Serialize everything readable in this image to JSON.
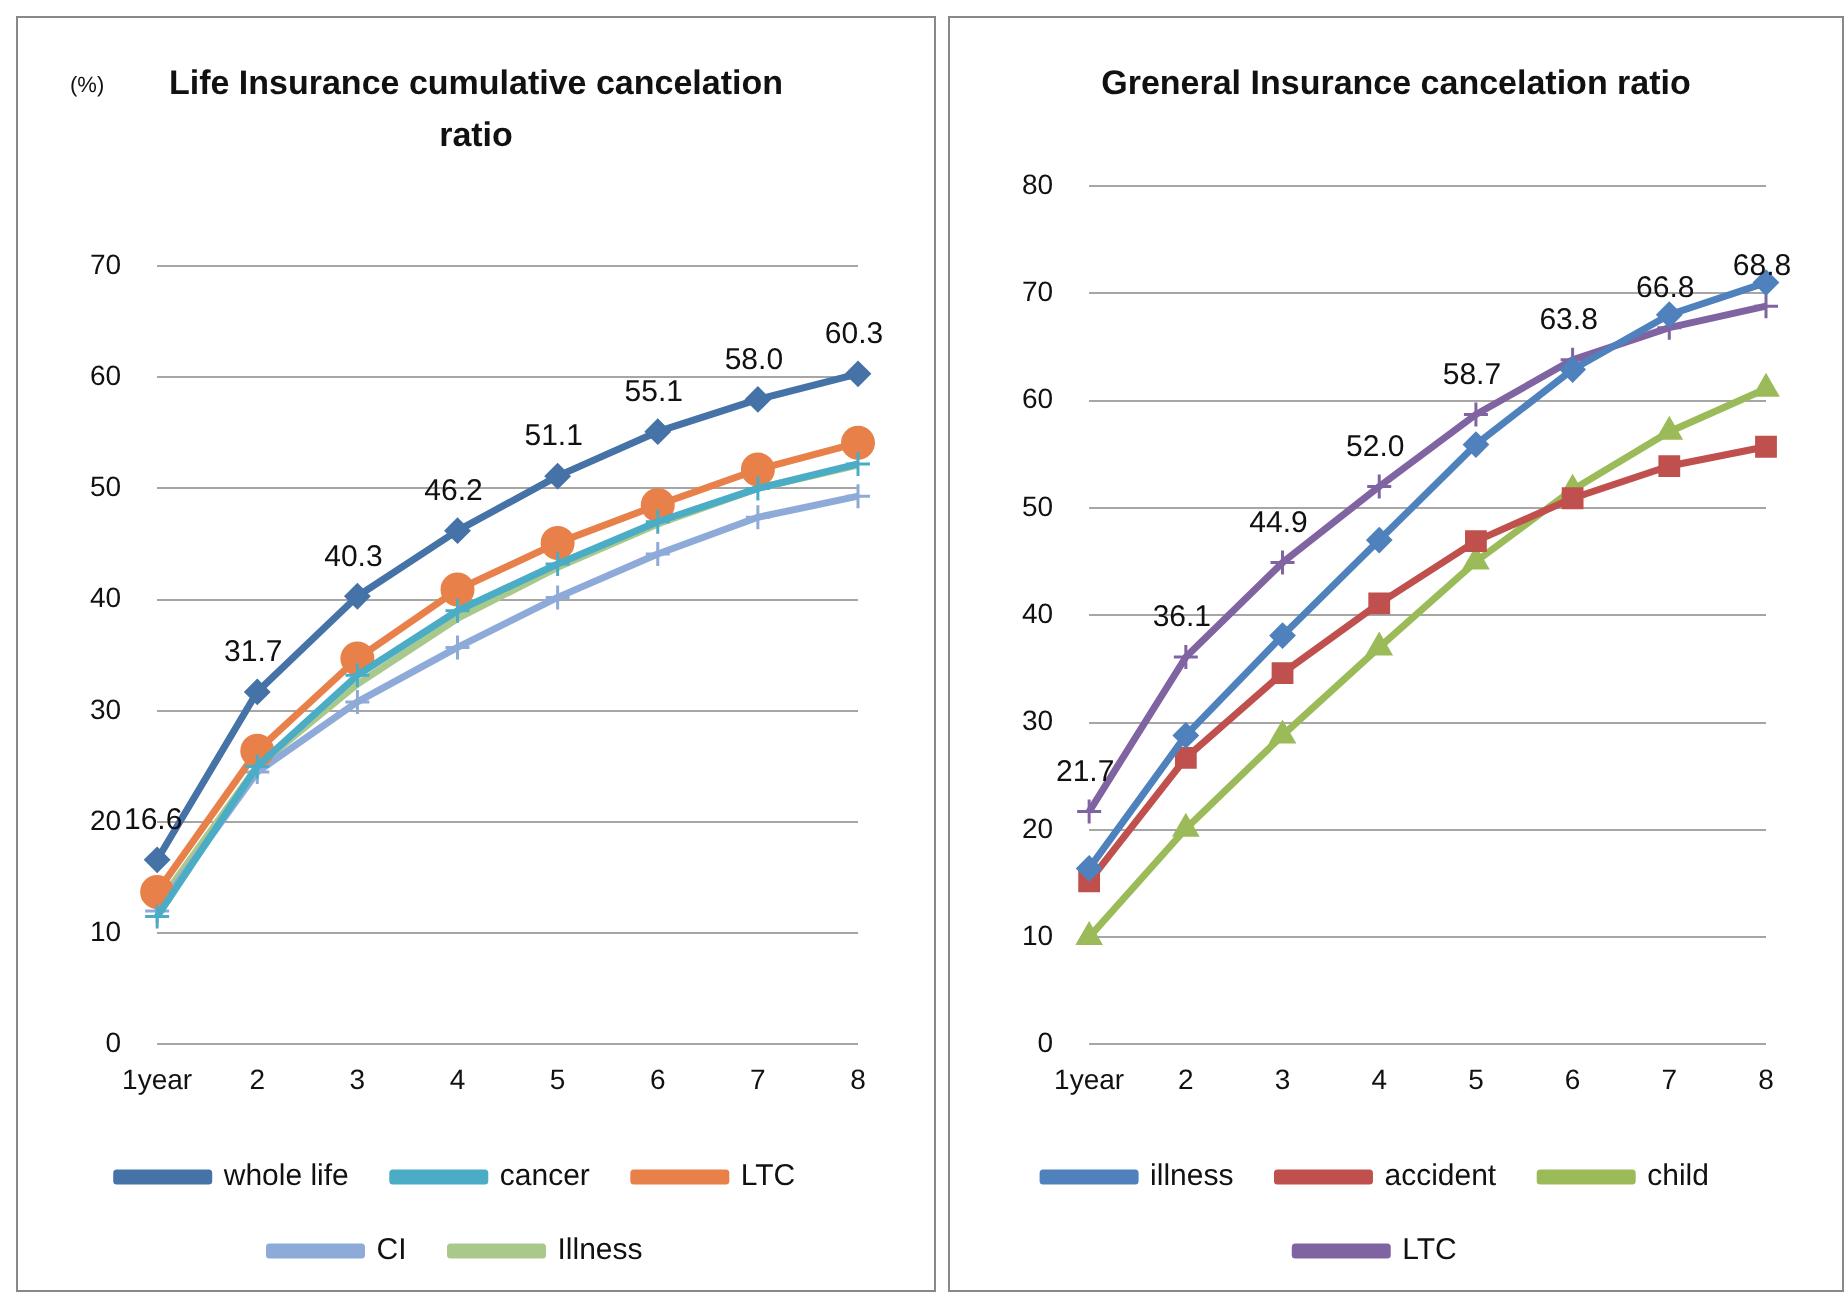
{
  "chart_data": [
    {
      "type": "line",
      "title": "Life Insurance cumulative cancelation ratio",
      "ylabel": "(%)",
      "categories": [
        "1year",
        "2",
        "3",
        "4",
        "5",
        "6",
        "7",
        "8"
      ],
      "ylim": [
        0,
        70
      ],
      "yticks": [
        0,
        10,
        20,
        30,
        40,
        50,
        60,
        70
      ],
      "grid": "y",
      "legend": "bottom",
      "series": [
        {
          "name": "whole life",
          "color": "#4572a7",
          "marker": "diamond",
          "values": [
            16.6,
            31.7,
            40.3,
            46.2,
            51.1,
            55.1,
            58.0,
            60.3
          ],
          "value_labels": [
            "16.6",
            "31.7",
            "40.3",
            "46.2",
            "51.1",
            "55.1",
            "58.0",
            "60.3"
          ]
        },
        {
          "name": "cancer",
          "color": "#4bacc6",
          "marker": "cross",
          "values": [
            11.5,
            25,
            33.2,
            39,
            43.2,
            47,
            50,
            52.2
          ]
        },
        {
          "name": "LTC",
          "color": "#e8804a",
          "marker": "circle",
          "values": [
            13.7,
            26.4,
            34.7,
            40.9,
            45.1,
            48.5,
            51.7,
            54.1
          ]
        },
        {
          "name": "CI",
          "color": "#8eaad8",
          "marker": "cross",
          "values": [
            12,
            24.5,
            30.8,
            35.7,
            40.2,
            44.1,
            47.4,
            49.3
          ]
        },
        {
          "name": "Illness",
          "color": "#a9c98c",
          "marker": "none",
          "values": [
            12.5,
            25,
            32.4,
            38.3,
            42.9,
            46.8,
            50,
            52.1
          ]
        }
      ]
    },
    {
      "type": "line",
      "title": "Greneral Insurance cancelation ratio",
      "categories": [
        "1year",
        "2",
        "3",
        "4",
        "5",
        "6",
        "7",
        "8"
      ],
      "ylim": [
        0,
        80
      ],
      "yticks": [
        0,
        10,
        20,
        30,
        40,
        50,
        60,
        70,
        80
      ],
      "grid": "y",
      "legend": "bottom",
      "series": [
        {
          "name": "illness",
          "color": "#4f81bd",
          "marker": "diamond",
          "values": [
            16.4,
            28.8,
            38.1,
            47.0,
            55.9,
            62.9,
            68.0,
            71.0
          ]
        },
        {
          "name": "accident",
          "color": "#c0504d",
          "marker": "square",
          "values": [
            15.2,
            26.7,
            34.6,
            41.1,
            46.9,
            50.9,
            53.9,
            55.7
          ]
        },
        {
          "name": "child",
          "color": "#9bbb59",
          "marker": "triangle",
          "values": [
            10,
            20.1,
            28.8,
            37.0,
            45.0,
            51.7,
            57.1,
            61.1
          ]
        },
        {
          "name": "LTC",
          "color": "#8064a2",
          "marker": "cross",
          "values": [
            21.7,
            36.1,
            44.9,
            52.0,
            58.7,
            63.8,
            66.8,
            68.8
          ],
          "value_labels": [
            "21.7",
            "36.1",
            "44.9",
            "52.0",
            "58.7",
            "63.8",
            "66.8",
            "68.8"
          ]
        }
      ]
    }
  ]
}
